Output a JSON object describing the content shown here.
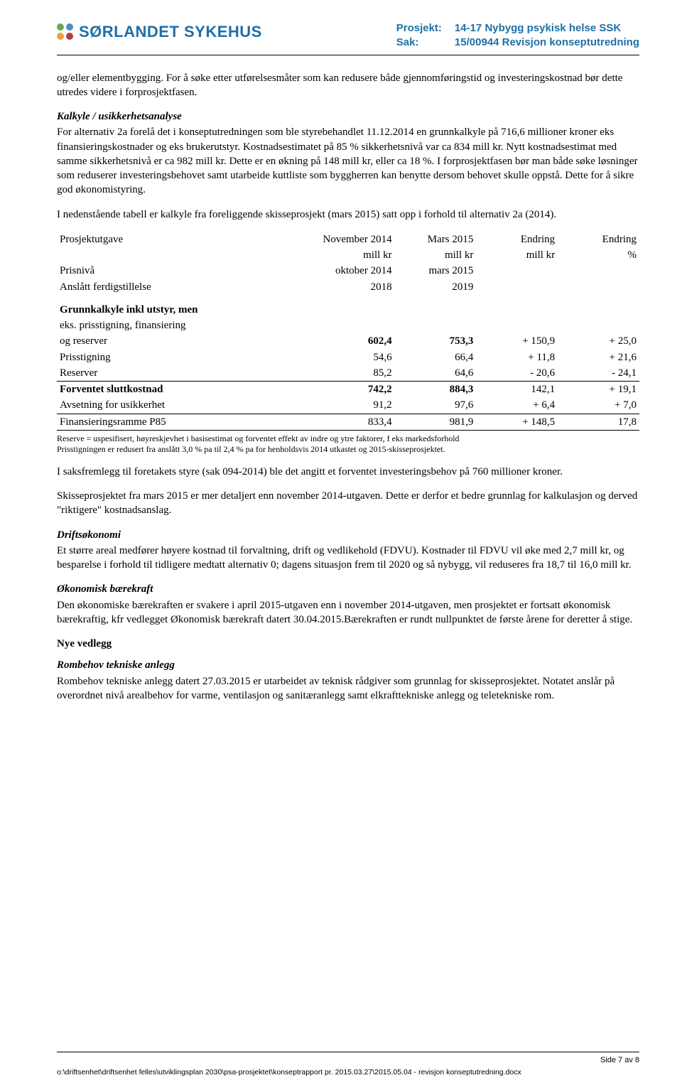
{
  "header": {
    "org_name": "SØRLANDET SYKEHUS",
    "project_label": "Prosjekt:",
    "project_value": "14-17 Nybygg psykisk helse SSK",
    "case_label": "Sak:",
    "case_value": "15/00944 Revisjon konseptutredning"
  },
  "p1": "og/eller elementbygging. For å søke etter utførelsesmåter som kan redusere både gjennomføringstid og investeringskostnad bør dette utredes videre i forprosjektfasen.",
  "h_kalkyle": "Kalkyle / usikkerhetsanalyse",
  "p_kalkyle": "For alternativ 2a forelå det i konseptutredningen som ble styrebehandlet 11.12.2014 en grunnkalkyle på 716,6 millioner kroner eks finansieringskostnader og eks brukerutstyr. Kostnadsestimatet på 85 % sikkerhetsnivå var ca 834 mill kr. Nytt kostnadsestimat med samme sikkerhetsnivå er ca 982 mill kr. Dette er en økning på 148 mill kr, eller ca 18 %. I forprosjektfasen bør man både søke løsninger som reduserer investeringsbehovet samt utarbeide kuttliste som byggherren kan benytte dersom behovet skulle oppstå. Dette for å sikre god økonomistyring.",
  "p_intro_table": "I nedenstående tabell er kalkyle fra foreliggende skisseprosjekt (mars 2015) satt opp i forhold til alternativ 2a (2014).",
  "table": {
    "col_headers_r1": [
      "Prosjektutgave",
      "November 2014",
      "Mars 2015",
      "Endring",
      "Endring"
    ],
    "col_headers_r2": [
      "",
      "mill kr",
      "mill kr",
      "mill kr",
      "%"
    ],
    "prisniva": [
      "Prisnivå",
      "oktober 2014",
      "mars 2015",
      "",
      ""
    ],
    "ferdig": [
      "Anslått ferdigstillelse",
      "2018",
      "2019",
      "",
      ""
    ],
    "grunnkalkyle_label_1": "Grunnkalkyle inkl utstyr, men",
    "grunnkalkyle_label_2": "eks. prisstigning, finansiering",
    "rows": [
      {
        "label": "og reserver",
        "v": [
          "602,4",
          "753,3",
          "+ 150,9",
          "+ 25,0"
        ],
        "bold": true
      },
      {
        "label": "Prisstigning",
        "v": [
          "54,6",
          "66,4",
          "+ 11,8",
          "+ 21,6"
        ],
        "bold": false
      },
      {
        "label": "Reserver",
        "v": [
          "85,2",
          "64,6",
          "- 20,6",
          "- 24,1"
        ],
        "bold": false
      },
      {
        "label": "Forventet sluttkostnad",
        "v": [
          "742,2",
          "884,3",
          "142,1",
          "+ 19,1"
        ],
        "bold": true,
        "rule": true
      },
      {
        "label": "Avsetning for usikkerhet",
        "v": [
          "91,2",
          "97,6",
          "+ 6,4",
          "+ 7,0"
        ],
        "bold": false
      },
      {
        "label": "Finansieringsramme P85",
        "v": [
          "833,4",
          "981,9",
          "+ 148,5",
          "17,8"
        ],
        "bold": false,
        "rule": true,
        "rule_below": true
      }
    ],
    "note1": "Reserve = uspesifisert, høyreskjevhet i basisestimat og forventet effekt av indre og ytre faktorer, f eks markedsforhold",
    "note2": "Prisstigningen er redusert fra anslått 3,0 % pa til 2,4 % pa for henholdsvis 2014 utkastet og 2015-skisseprosjektet."
  },
  "p_after_table1": "I saksfremlegg til foretakets styre (sak 094-2014) ble det angitt et forventet investeringsbehov på 760 millioner kroner.",
  "p_after_table2": "Skisseprosjektet fra mars 2015 er mer detaljert enn november 2014-utgaven. Dette er derfor et bedre grunnlag for kalkulasjon og derved \"riktigere\" kostnadsanslag.",
  "h_drift": "Driftsøkonomi",
  "p_drift": "Et større areal medfører høyere kostnad til forvaltning, drift og vedlikehold (FDVU). Kostnader til FDVU vil øke med 2,7 mill kr, og besparelse i forhold til tidligere medtatt alternativ 0; dagens situasjon frem til 2020 og så nybygg, vil reduseres fra 18,7 til 16,0 mill kr.",
  "h_okonomisk": "Økonomisk bærekraft",
  "p_okonomisk": "Den økonomiske bærekraften er svakere i april 2015-utgaven enn i november 2014-utgaven, men prosjektet er fortsatt økonomisk bærekraftig, kfr vedlegget Økonomisk bærekraft datert 30.04.2015.Bærekraften er rundt nullpunktet de første årene for deretter å stige.",
  "h_nye": "Nye vedlegg",
  "h_rombehov": "Rombehov tekniske anlegg",
  "p_rombehov": "Rombehov tekniske anlegg datert 27.03.2015 er utarbeidet av teknisk rådgiver som grunnlag for skisseprosjektet. Notatet anslår på overordnet nivå arealbehov for varme, ventilasjon og sanitæranlegg samt elkrafttekniske anlegg og teletekniske rom.",
  "footer": {
    "page": "Side 7 av 8",
    "path": "o:\\driftsenhet\\driftsenhet felles\\utviklingsplan 2030\\psa-prosjektet\\konseptrapport pr. 2015.03.27\\2015.05.04 - revisjon konseptutredning.docx"
  }
}
